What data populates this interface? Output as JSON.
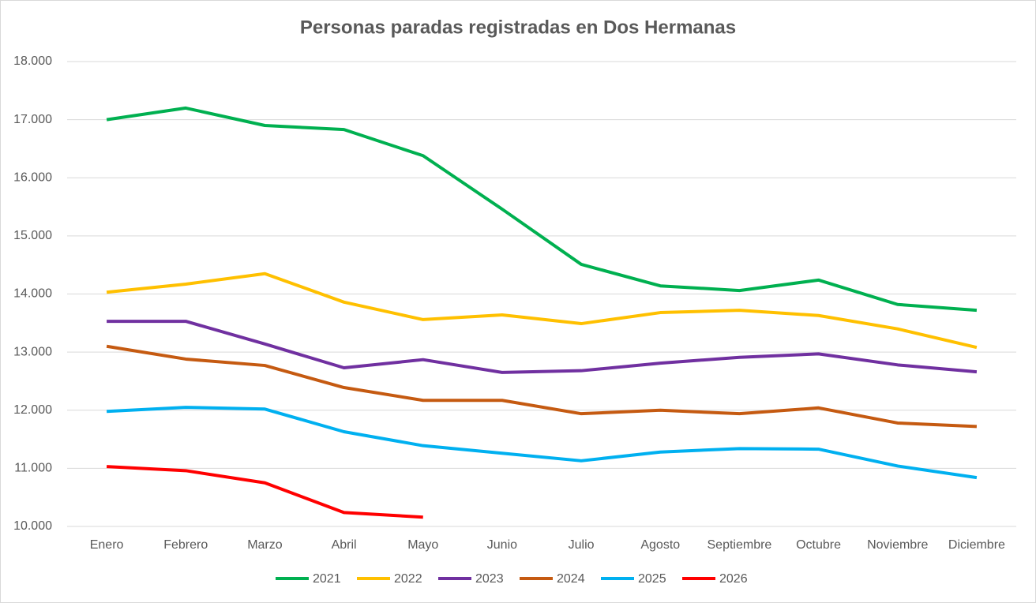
{
  "chart_data": {
    "type": "line",
    "title": "Personas paradas registradas en Dos Hermanas",
    "categories": [
      "Enero",
      "Febrero",
      "Marzo",
      "Abril",
      "Mayo",
      "Junio",
      "Julio",
      "Agosto",
      "Septiembre",
      "Octubre",
      "Noviembre",
      "Diciembre"
    ],
    "series": [
      {
        "name": "2021",
        "color": "#00b050",
        "values": [
          17000,
          17200,
          16900,
          16830,
          16380,
          15460,
          14510,
          14140,
          14060,
          14240,
          13820,
          13720
        ]
      },
      {
        "name": "2022",
        "color": "#ffc000",
        "values": [
          14030,
          14170,
          14350,
          13860,
          13560,
          13640,
          13490,
          13680,
          13720,
          13630,
          13400,
          13080
        ]
      },
      {
        "name": "2023",
        "color": "#7030a0",
        "values": [
          13530,
          13530,
          13140,
          12730,
          12870,
          12650,
          12680,
          12810,
          12910,
          12970,
          12780,
          12660
        ]
      },
      {
        "name": "2024",
        "color": "#c55a11",
        "values": [
          13100,
          12880,
          12770,
          12390,
          12170,
          12170,
          11940,
          12000,
          11940,
          12040,
          11780,
          11720
        ]
      },
      {
        "name": "2025",
        "color": "#00b0f0",
        "values": [
          11980,
          12050,
          12020,
          11630,
          11390,
          11260,
          11130,
          11280,
          11340,
          11330,
          11040,
          10840
        ]
      },
      {
        "name": "2026",
        "color": "#ff0000",
        "values": [
          11030,
          10960,
          10750,
          10240,
          10160,
          null,
          null,
          null,
          null,
          null,
          null,
          null
        ]
      }
    ],
    "ylim": [
      10000,
      18000
    ],
    "yticks": [
      {
        "value": 10000,
        "label": "10.000"
      },
      {
        "value": 11000,
        "label": "11.000"
      },
      {
        "value": 12000,
        "label": "12.000"
      },
      {
        "value": 13000,
        "label": "13.000"
      },
      {
        "value": 14000,
        "label": "14.000"
      },
      {
        "value": 15000,
        "label": "15.000"
      },
      {
        "value": 16000,
        "label": "16.000"
      },
      {
        "value": 17000,
        "label": "17.000"
      },
      {
        "value": 18000,
        "label": "18.000"
      }
    ],
    "grid": true,
    "legend": "bottom"
  }
}
